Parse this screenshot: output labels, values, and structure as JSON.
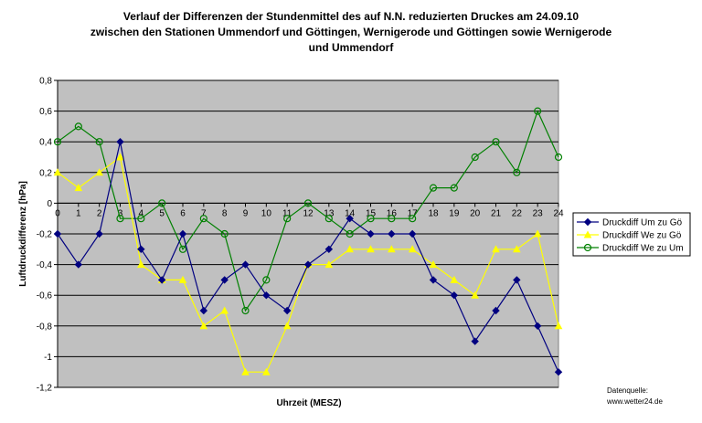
{
  "chart_data": {
    "type": "line",
    "title_lines": [
      "Verlauf der Differenzen der Stundenmittel des auf N.N. reduzierten Druckes am 24.09.10",
      "zwischen den Stationen Ummendorf und Göttingen, Wernigerode und Göttingen sowie Wernigerode",
      "und Ummendorf"
    ],
    "xlabel": "Uhrzeit (MESZ)",
    "ylabel": "Luftdruckdifferenz [hPa]",
    "x": [
      0,
      1,
      2,
      3,
      4,
      5,
      6,
      7,
      8,
      9,
      10,
      11,
      12,
      13,
      14,
      15,
      16,
      17,
      18,
      19,
      20,
      21,
      22,
      23,
      24
    ],
    "x_tick_labels": [
      "0",
      "1",
      "2",
      "3",
      "4",
      "5",
      "6",
      "7",
      "8",
      "9",
      "10",
      "11",
      "12",
      "13",
      "14",
      "15",
      "16",
      "17",
      "18",
      "19",
      "20",
      "21",
      "22",
      "23",
      "24"
    ],
    "ylim": [
      -1.2,
      0.8
    ],
    "y_ticks": [
      0.8,
      0.6,
      0.4,
      0.2,
      0,
      -0.2,
      -0.4,
      -0.6,
      -0.8,
      -1,
      -1.2
    ],
    "y_tick_labels": [
      "0,8",
      "0,6",
      "0,4",
      "0,2",
      "0",
      "-0,2",
      "-0,4",
      "-0,6",
      "-0,8",
      "-1",
      "-1,2"
    ],
    "grid": "horizontal",
    "legend_position": "right",
    "series": [
      {
        "name": "Druckdiff Um zu Gö",
        "color": "#000080",
        "marker": "diamond",
        "values": [
          -0.2,
          -0.4,
          -0.2,
          0.4,
          -0.3,
          -0.5,
          -0.2,
          -0.7,
          -0.5,
          -0.4,
          -0.6,
          -0.7,
          -0.4,
          -0.3,
          -0.1,
          -0.2,
          -0.2,
          -0.2,
          -0.5,
          -0.6,
          -0.9,
          -0.7,
          -0.5,
          -0.8,
          -1.1
        ]
      },
      {
        "name": "Druckdiff We zu Gö",
        "color": "#ffff00",
        "marker": "triangle",
        "values": [
          0.2,
          0.1,
          0.2,
          0.3,
          -0.4,
          -0.5,
          -0.5,
          -0.8,
          -0.7,
          -1.1,
          -1.1,
          -0.8,
          -0.4,
          -0.4,
          -0.3,
          -0.3,
          -0.3,
          -0.3,
          -0.4,
          -0.5,
          -0.6,
          -0.3,
          -0.3,
          -0.2,
          -0.8
        ]
      },
      {
        "name": "Druckdiff We zu Um",
        "color": "#008000",
        "marker": "circle",
        "values": [
          0.4,
          0.5,
          0.4,
          -0.1,
          -0.1,
          0.0,
          -0.3,
          -0.1,
          -0.2,
          -0.7,
          -0.5,
          -0.1,
          0.0,
          -0.1,
          -0.2,
          -0.1,
          -0.1,
          -0.1,
          0.1,
          0.1,
          0.3,
          0.4,
          0.2,
          0.6,
          0.3
        ]
      }
    ],
    "plot_background": "#c0c0c0",
    "source_lines": [
      "Datenquelle:",
      "www.wetter24.de"
    ]
  }
}
